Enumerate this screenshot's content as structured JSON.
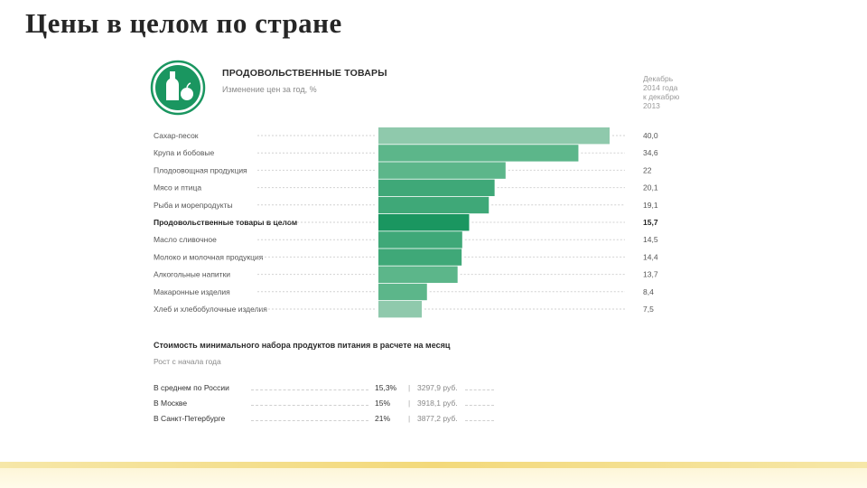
{
  "slide_title": "Цены в целом по стране",
  "infographic": {
    "title": "ПРОДОВОЛЬСТВЕННЫЕ ТОВАРЫ",
    "subtitle": "Изменение цен за год, %",
    "period_note": [
      "Декабрь",
      "2014 года",
      "к декабрю",
      "2013"
    ],
    "logo_icon": "bottle-and-apple-icon"
  },
  "chart_data": {
    "type": "bar",
    "orientation": "horizontal",
    "title": "ПРОДОВОЛЬСТВЕННЫЕ ТОВАРЫ",
    "subtitle": "Изменение цен за год, %",
    "categories": [
      "Сахар-песок",
      "Крупа и бобовые",
      "Плодоовощная продукция",
      "Мясо и птица",
      "Рыба и морепродукты",
      "Продовольственные товары в целом",
      "Масло сливочное",
      "Молоко и молочная продукция",
      "Алкогольные напитки",
      "Макаронные изделия",
      "Хлеб и хлебобулочные изделия"
    ],
    "values": [
      40.0,
      34.6,
      22,
      20.1,
      19.1,
      15.7,
      14.5,
      14.4,
      13.7,
      8.4,
      7.5
    ],
    "value_labels": [
      "40,0",
      "34,6",
      "22",
      "20,1",
      "19,1",
      "15,7",
      "14,5",
      "14,4",
      "13,7",
      "8,4",
      "7,5"
    ],
    "highlight_index": 5,
    "xlim": [
      0,
      40
    ],
    "grid": false,
    "colors": {
      "bars": [
        "#8fc9ac",
        "#5cb68a",
        "#5cb68a",
        "#3fa878",
        "#3fa878",
        "#1a9660",
        "#3fa878",
        "#3fa878",
        "#5cb68a",
        "#5cb68a",
        "#8fc9ac"
      ],
      "logo": "#1a9660"
    }
  },
  "stats": {
    "title": "Стоимость минимального набора продуктов питания в расчете на месяц",
    "subtitle": "Рост с начала года",
    "separator": "|",
    "rows": [
      {
        "region": "В среднем по России",
        "growth": "15,3%",
        "cost": "3297,9 руб."
      },
      {
        "region": "В Москве",
        "growth": "15%",
        "cost": "3918,1 руб."
      },
      {
        "region": "В Санкт-Петербурге",
        "growth": "21%",
        "cost": "3877,2 руб."
      }
    ]
  }
}
